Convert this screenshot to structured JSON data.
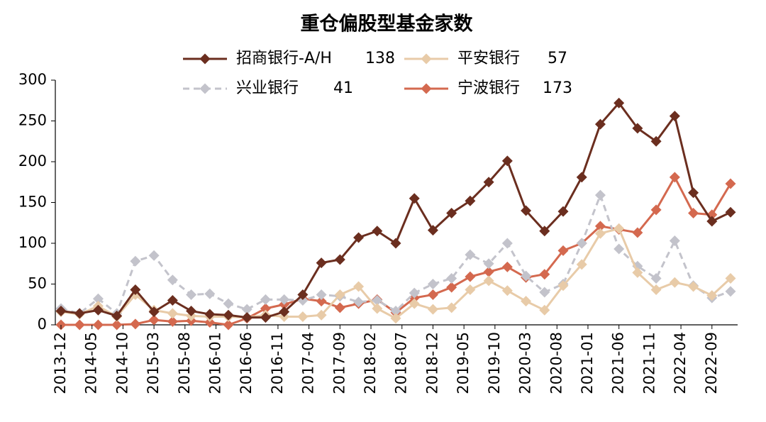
{
  "chart_data": {
    "type": "line",
    "title": "重仓偏股型基金家数",
    "x": [
      "2013-12",
      "2014-03",
      "2014-06",
      "2014-09",
      "2014-12",
      "2015-03",
      "2015-06",
      "2015-09",
      "2015-12",
      "2016-03",
      "2016-06",
      "2016-09",
      "2016-12",
      "2017-03",
      "2017-06",
      "2017-09",
      "2017-12",
      "2018-03",
      "2018-06",
      "2018-09",
      "2018-12",
      "2019-03",
      "2019-06",
      "2019-09",
      "2019-12",
      "2020-03",
      "2020-06",
      "2020-09",
      "2020-12",
      "2021-03",
      "2021-06",
      "2021-09",
      "2021-12",
      "2022-03",
      "2022-06",
      "2022-09",
      "2022-12"
    ],
    "xticks": [
      "2013-12",
      "2014-05",
      "2014-10",
      "2015-03",
      "2015-08",
      "2016-01",
      "2016-06",
      "2016-11",
      "2017-04",
      "2017-09",
      "2018-02",
      "2018-07",
      "2018-12",
      "2019-05",
      "2019-10",
      "2020-03",
      "2020-08",
      "2021-01",
      "2021-06",
      "2021-11",
      "2022-04",
      "2022-09"
    ],
    "series": [
      {
        "name": "招商银行-A/H",
        "color": "#6b2e1f",
        "dashed": false,
        "values": [
          17,
          14,
          18,
          11,
          43,
          16,
          30,
          17,
          13,
          12,
          9,
          9,
          16,
          37,
          76,
          80,
          107,
          115,
          100,
          155,
          116,
          137,
          152,
          175,
          201,
          140,
          115,
          139,
          181,
          246,
          272,
          241,
          225,
          256,
          162,
          127,
          138
        ]
      },
      {
        "name": "平安银行",
        "color": "#e8cba8",
        "dashed": false,
        "values": [
          16,
          13,
          23,
          10,
          37,
          18,
          14,
          11,
          10,
          10,
          9,
          12,
          10,
          10,
          12,
          37,
          47,
          20,
          8,
          26,
          19,
          21,
          43,
          54,
          42,
          29,
          18,
          48,
          74,
          112,
          118,
          64,
          43,
          52,
          47,
          36,
          57
        ]
      },
      {
        "name": "兴业银行",
        "color": "#c3c3cb",
        "dashed": true,
        "values": [
          20,
          14,
          32,
          14,
          78,
          85,
          55,
          37,
          38,
          26,
          19,
          31,
          31,
          30,
          37,
          35,
          28,
          30,
          17,
          39,
          50,
          57,
          86,
          75,
          100,
          60,
          40,
          50,
          100,
          159,
          93,
          72,
          57,
          103,
          48,
          33,
          41
        ]
      },
      {
        "name": "宁波银行",
        "color": "#d4694f",
        "dashed": false,
        "values": [
          0,
          0,
          0,
          0,
          1,
          6,
          4,
          5,
          3,
          0,
          8,
          20,
          25,
          32,
          29,
          21,
          26,
          31,
          15,
          33,
          37,
          46,
          59,
          65,
          71,
          58,
          62,
          91,
          100,
          121,
          117,
          113,
          141,
          181,
          137,
          135,
          173
        ]
      }
    ],
    "ylim": [
      0,
      300
    ],
    "yticks": [
      0,
      50,
      100,
      150,
      200,
      250,
      300
    ]
  }
}
